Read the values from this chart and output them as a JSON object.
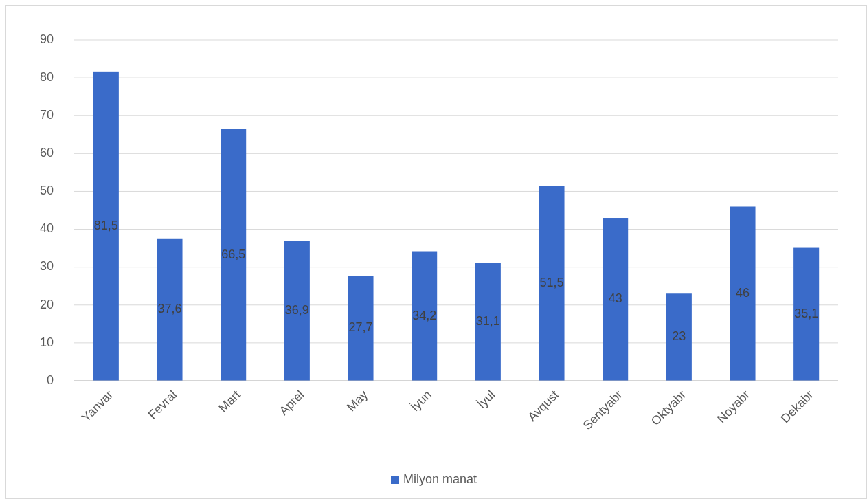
{
  "chart_data": {
    "type": "bar",
    "categories": [
      "Yanvar",
      "Fevral",
      "Mart",
      "Aprel",
      "May",
      "İyun",
      "İyul",
      "Avqust",
      "Sentyabr",
      "Oktyabr",
      "Noyabr",
      "Dekabr"
    ],
    "series": [
      {
        "name": "Milyon manat",
        "color": "#3a6bc9",
        "values": [
          81.5,
          37.6,
          66.5,
          36.9,
          27.7,
          34.2,
          31.1,
          51.5,
          43,
          23,
          46,
          35.1
        ],
        "value_labels": [
          "81,5",
          "37,6",
          "66,5",
          "36,9",
          "27,7",
          "34,2",
          "31,1",
          "51,5",
          "43",
          "23",
          "46",
          "35,1"
        ]
      }
    ],
    "ylim": [
      0,
      90
    ],
    "yticks": [
      0,
      10,
      20,
      30,
      40,
      50,
      60,
      70,
      80,
      90
    ],
    "grid": "y",
    "legend": "bottom"
  }
}
